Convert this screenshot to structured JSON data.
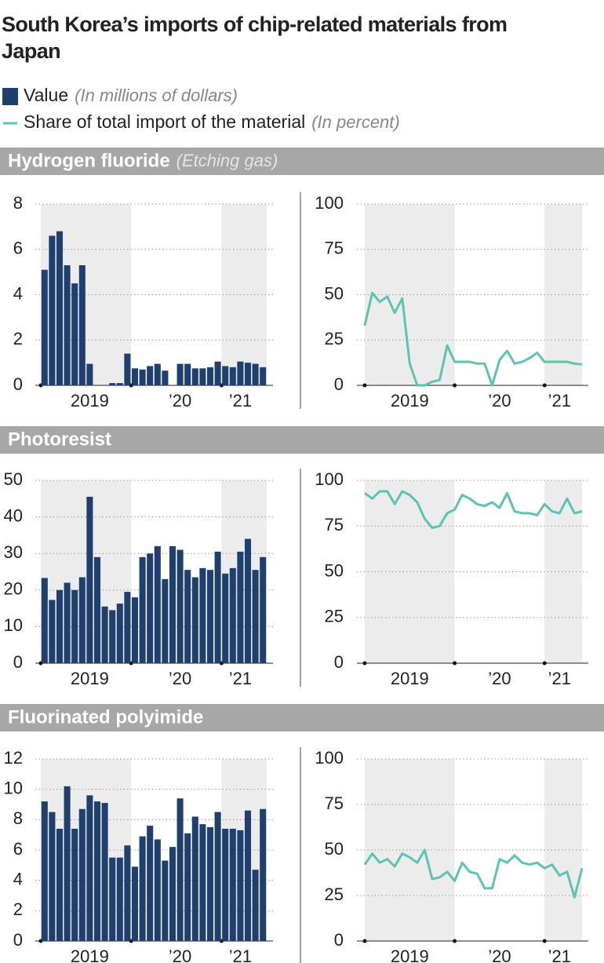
{
  "title": "South Korea’s imports of chip-related materials from Japan",
  "legend": [
    {
      "name": "Value",
      "unit": "(In millions of dollars)",
      "color": "#1f3f6e"
    },
    {
      "name": "Share of total import of the material",
      "unit": "(In percent)",
      "color": "#5cc4b0"
    }
  ],
  "chart_data": [
    {
      "type": "bar",
      "section_title": "Hydrogen fluoride",
      "section_note": "(Etching gas)",
      "color": "#1f3f6e",
      "categories": [
        null,
        null,
        null,
        null,
        null,
        null,
        "2019",
        null,
        null,
        null,
        null,
        null,
        null,
        null,
        null,
        null,
        null,
        null,
        "’20",
        null,
        null,
        null,
        null,
        null,
        null,
        null,
        "’21",
        null,
        null,
        null
      ],
      "values": [
        5.1,
        6.6,
        6.8,
        5.3,
        4.5,
        5.3,
        0.95,
        0,
        0,
        0.1,
        0.1,
        1.4,
        0.75,
        0.7,
        0.85,
        0.95,
        0.65,
        0,
        0.95,
        0.95,
        0.75,
        0.75,
        0.8,
        1.05,
        0.85,
        0.8,
        1.05,
        1.0,
        0.95,
        0.8
      ],
      "ylim": [
        0,
        8
      ],
      "yticks": [
        0,
        2,
        4,
        6,
        8
      ],
      "grid": true
    },
    {
      "type": "line",
      "color": "#5cc4b0",
      "categories": [
        null,
        null,
        null,
        null,
        null,
        null,
        "2019",
        null,
        null,
        null,
        null,
        null,
        null,
        null,
        null,
        null,
        null,
        null,
        "’20",
        null,
        null,
        null,
        null,
        null,
        null,
        null,
        "’21",
        null,
        null,
        null
      ],
      "values": [
        33,
        51,
        46,
        49,
        40,
        48,
        12,
        0,
        0,
        2,
        3,
        22,
        13,
        13,
        13,
        12,
        12,
        0,
        14,
        19,
        12,
        13,
        15,
        18,
        13,
        13,
        13,
        13,
        12,
        11.5
      ],
      "ylim": [
        0,
        100
      ],
      "yticks": [
        0,
        25,
        50,
        75,
        100
      ],
      "grid": true
    },
    {
      "type": "bar",
      "section_title": "Photoresist",
      "color": "#1f3f6e",
      "categories": [
        null,
        null,
        null,
        null,
        null,
        null,
        "2019",
        null,
        null,
        null,
        null,
        null,
        null,
        null,
        null,
        null,
        null,
        null,
        "’20",
        null,
        null,
        null,
        null,
        null,
        null,
        null,
        "’21",
        null,
        null,
        null
      ],
      "values": [
        23.3,
        17.3,
        20,
        22,
        20,
        23.5,
        45.5,
        29,
        15.5,
        14.5,
        16.3,
        19.5,
        18,
        29,
        30,
        32,
        23,
        32,
        31,
        25.5,
        23.5,
        26,
        25.5,
        30.5,
        24.5,
        26,
        30.5,
        34,
        25.5,
        29
      ],
      "ylim": [
        0,
        50
      ],
      "yticks": [
        0,
        10,
        20,
        30,
        40,
        50
      ],
      "grid": true
    },
    {
      "type": "line",
      "color": "#5cc4b0",
      "categories": [
        null,
        null,
        null,
        null,
        null,
        null,
        "2019",
        null,
        null,
        null,
        null,
        null,
        null,
        null,
        null,
        null,
        null,
        null,
        "’20",
        null,
        null,
        null,
        null,
        null,
        null,
        null,
        "’21",
        null,
        null,
        null
      ],
      "values": [
        93,
        90,
        94,
        94,
        87,
        94,
        92,
        88,
        79,
        74,
        75,
        82,
        84,
        92,
        90,
        87,
        86,
        88,
        85,
        93,
        83,
        82,
        82,
        81,
        87,
        83,
        82,
        90,
        82,
        83
      ],
      "ylim": [
        0,
        100
      ],
      "yticks": [
        0,
        25,
        50,
        75,
        100
      ],
      "grid": true
    },
    {
      "type": "bar",
      "section_title": "Fluorinated polyimide",
      "color": "#1f3f6e",
      "categories": [
        null,
        null,
        null,
        null,
        null,
        null,
        "2019",
        null,
        null,
        null,
        null,
        null,
        null,
        null,
        null,
        null,
        null,
        null,
        "’20",
        null,
        null,
        null,
        null,
        null,
        null,
        null,
        "’21",
        null,
        null,
        null
      ],
      "values": [
        9.2,
        8.5,
        7.4,
        10.2,
        7.4,
        8.7,
        9.6,
        9.2,
        9.1,
        5.5,
        5.5,
        6.3,
        4.9,
        6.9,
        7.6,
        6.7,
        5.3,
        6.2,
        9.4,
        7.1,
        8.2,
        7.7,
        7.5,
        8.5,
        7.4,
        7.4,
        7.3,
        8.6,
        4.7,
        8.7
      ],
      "ylim": [
        0,
        12
      ],
      "yticks": [
        0,
        2,
        4,
        6,
        8,
        10,
        12
      ],
      "grid": true
    },
    {
      "type": "line",
      "color": "#5cc4b0",
      "categories": [
        null,
        null,
        null,
        null,
        null,
        null,
        "2019",
        null,
        null,
        null,
        null,
        null,
        null,
        null,
        null,
        null,
        null,
        null,
        "’20",
        null,
        null,
        null,
        null,
        null,
        null,
        null,
        "’21",
        null,
        null,
        null
      ],
      "values": [
        42,
        48,
        43,
        45,
        41,
        48,
        46,
        43,
        50,
        34,
        35,
        38,
        33,
        43,
        38,
        37,
        29,
        29,
        45,
        43,
        47,
        43,
        42,
        43,
        40,
        42,
        36,
        38,
        24,
        40
      ],
      "ylim": [
        0,
        100
      ],
      "yticks": [
        0,
        25,
        50,
        75,
        100
      ],
      "grid": true
    }
  ]
}
